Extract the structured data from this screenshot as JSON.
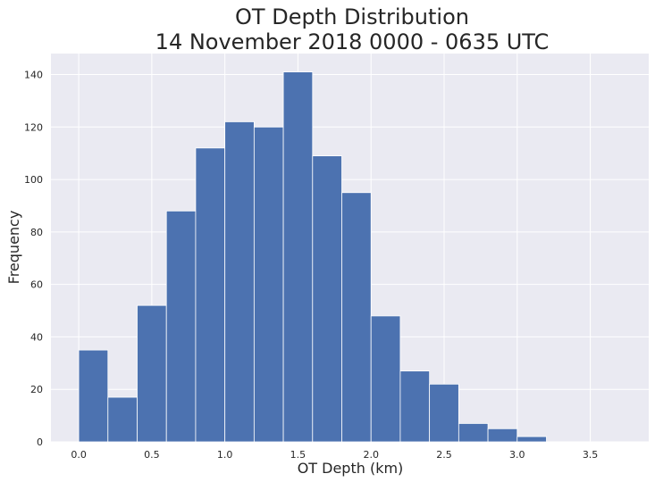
{
  "chart_data": {
    "type": "bar",
    "title_line1": "OT Depth Distribution",
    "title_line2": "14 November 2018 0000 - 0635 UTC",
    "xlabel": "OT Depth (km)",
    "ylabel": "Frequency",
    "bin_edges": [
      0.0,
      0.2,
      0.4,
      0.6,
      0.8,
      1.0,
      1.2,
      1.4,
      1.6,
      1.8,
      2.0,
      2.2,
      2.4,
      2.6,
      2.8,
      3.0,
      3.2
    ],
    "values": [
      35,
      17,
      52,
      88,
      112,
      122,
      120,
      141,
      109,
      95,
      48,
      27,
      22,
      7,
      5,
      2
    ],
    "xlim": [
      -0.19,
      3.9
    ],
    "ylim": [
      0,
      148
    ],
    "xticks": [
      0.0,
      0.5,
      1.0,
      1.5,
      2.0,
      2.5,
      3.0,
      3.5
    ],
    "xtick_labels": [
      "0.0",
      "0.5",
      "1.0",
      "1.5",
      "2.0",
      "2.5",
      "3.0",
      "3.5"
    ],
    "yticks": [
      0,
      20,
      40,
      60,
      80,
      100,
      120,
      140
    ],
    "ytick_labels": [
      "0",
      "20",
      "40",
      "60",
      "80",
      "100",
      "120",
      "140"
    ],
    "grid": true,
    "colors": {
      "bar": "#4c72b0",
      "bar_edge": "#ffffff",
      "plot_background": "#eaeaf2",
      "grid": "#ffffff",
      "text": "#262626"
    }
  }
}
